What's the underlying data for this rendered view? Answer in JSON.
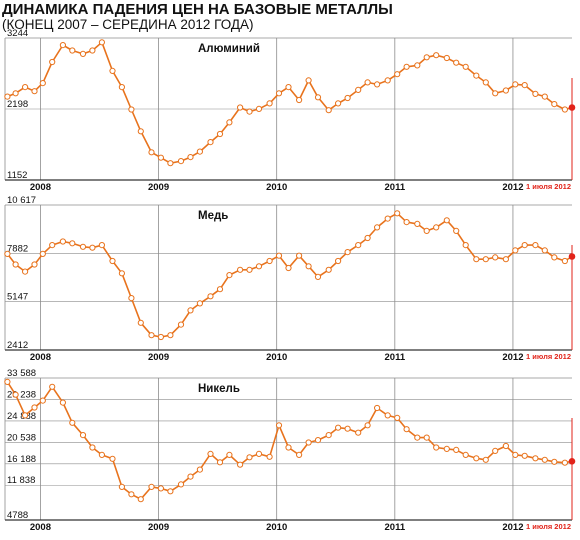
{
  "header": {
    "title": "ДИНАМИКА ПАДЕНИЯ ЦЕН НА БАЗОВЫЕ МЕТАЛЛЫ",
    "subtitle": "(КОНЕЦ 2007 – СЕРЕДИНА 2012 ГОДА)"
  },
  "colors": {
    "line": "#e8731d",
    "marker_fill": "#ffffff",
    "last_point": "#e2231a",
    "date_label": "#e2231a",
    "grid": "#8c8c8c",
    "axis": "#333333"
  },
  "chart_data": [
    {
      "type": "line",
      "title": "Алюминий",
      "x_tick_labels": [
        "2008",
        "2009",
        "2010",
        "2011",
        "2012"
      ],
      "x_ticks": [
        2008,
        2009,
        2010,
        2011,
        2012
      ],
      "end_label": "1 июля 2012",
      "xlim": [
        2007.7,
        2012.5
      ],
      "ylim": [
        1152,
        3244
      ],
      "y_ticks": [
        "3244",
        "2198",
        "1152"
      ],
      "y_tick_values": [
        3244,
        2198,
        1152
      ],
      "x": [
        2007.72,
        2007.79,
        2007.87,
        2007.95,
        2008.02,
        2008.1,
        2008.19,
        2008.27,
        2008.36,
        2008.44,
        2008.52,
        2008.61,
        2008.69,
        2008.77,
        2008.85,
        2008.94,
        2009.02,
        2009.1,
        2009.19,
        2009.27,
        2009.35,
        2009.44,
        2009.52,
        2009.6,
        2009.69,
        2009.77,
        2009.85,
        2009.94,
        2010.02,
        2010.1,
        2010.19,
        2010.27,
        2010.35,
        2010.44,
        2010.52,
        2010.6,
        2010.69,
        2010.77,
        2010.85,
        2010.94,
        2011.02,
        2011.1,
        2011.19,
        2011.27,
        2011.35,
        2011.44,
        2011.52,
        2011.6,
        2011.69,
        2011.77,
        2011.85,
        2011.94,
        2012.02,
        2012.1,
        2012.19,
        2012.27,
        2012.35,
        2012.44,
        2012.5
      ],
      "values": [
        2380,
        2430,
        2520,
        2460,
        2580,
        2890,
        3140,
        3060,
        3010,
        3060,
        3180,
        2760,
        2520,
        2190,
        1870,
        1560,
        1480,
        1400,
        1430,
        1490,
        1570,
        1710,
        1830,
        2000,
        2220,
        2160,
        2200,
        2280,
        2430,
        2520,
        2330,
        2620,
        2370,
        2180,
        2280,
        2360,
        2480,
        2590,
        2560,
        2620,
        2710,
        2820,
        2840,
        2960,
        2990,
        2950,
        2880,
        2820,
        2690,
        2590,
        2430,
        2470,
        2560,
        2550,
        2420,
        2380,
        2270,
        2190,
        2220
      ]
    },
    {
      "type": "line",
      "title": "Медь",
      "x_tick_labels": [
        "2008",
        "2009",
        "2010",
        "2011",
        "2012"
      ],
      "x_ticks": [
        2008,
        2009,
        2010,
        2011,
        2012
      ],
      "end_label": "1 июля 2012",
      "xlim": [
        2007.7,
        2012.5
      ],
      "ylim": [
        2412,
        10617
      ],
      "y_ticks": [
        "10 617",
        "7882",
        "5147",
        "2412"
      ],
      "y_tick_values": [
        10617,
        7882,
        5147,
        2412
      ],
      "x": [
        2007.72,
        2007.79,
        2007.87,
        2007.95,
        2008.02,
        2008.1,
        2008.19,
        2008.27,
        2008.36,
        2008.44,
        2008.52,
        2008.61,
        2008.69,
        2008.77,
        2008.85,
        2008.94,
        2009.02,
        2009.1,
        2009.19,
        2009.27,
        2009.35,
        2009.44,
        2009.52,
        2009.6,
        2009.69,
        2009.77,
        2009.85,
        2009.94,
        2010.02,
        2010.1,
        2010.19,
        2010.27,
        2010.35,
        2010.44,
        2010.52,
        2010.6,
        2010.69,
        2010.77,
        2010.85,
        2010.94,
        2011.02,
        2011.1,
        2011.19,
        2011.27,
        2011.35,
        2011.44,
        2011.52,
        2011.6,
        2011.69,
        2011.77,
        2011.85,
        2011.94,
        2012.02,
        2012.1,
        2012.19,
        2012.27,
        2012.35,
        2012.44,
        2012.5
      ],
      "values": [
        7850,
        7250,
        6850,
        7250,
        7850,
        8350,
        8550,
        8450,
        8250,
        8200,
        8350,
        7450,
        6750,
        5350,
        3950,
        3250,
        3150,
        3250,
        3850,
        4650,
        5050,
        5450,
        5850,
        6650,
        6950,
        6950,
        7150,
        7450,
        7750,
        7050,
        7750,
        7150,
        6550,
        6950,
        7450,
        7950,
        8350,
        8750,
        9350,
        9850,
        10150,
        9650,
        9550,
        9150,
        9350,
        9750,
        9150,
        8350,
        7550,
        7550,
        7650,
        7550,
        8050,
        8350,
        8350,
        8050,
        7650,
        7450,
        7700
      ]
    },
    {
      "type": "line",
      "title": "Никель",
      "x_tick_labels": [
        "2008",
        "2009",
        "2010",
        "2011",
        "2012"
      ],
      "x_ticks": [
        2008,
        2009,
        2010,
        2011,
        2012
      ],
      "end_label": "1 июля 2012",
      "xlim": [
        2007.7,
        2012.5
      ],
      "ylim": [
        4788,
        33588
      ],
      "y_ticks": [
        "33 588",
        "29 238",
        "24 888",
        "20 538",
        "16 188",
        "11 838",
        "4788"
      ],
      "y_tick_values": [
        33588,
        29238,
        24888,
        20538,
        16188,
        11838,
        4788
      ],
      "x": [
        2007.72,
        2007.79,
        2007.87,
        2007.95,
        2008.02,
        2008.1,
        2008.19,
        2008.27,
        2008.36,
        2008.44,
        2008.52,
        2008.61,
        2008.69,
        2008.77,
        2008.85,
        2008.94,
        2009.02,
        2009.1,
        2009.19,
        2009.27,
        2009.35,
        2009.44,
        2009.52,
        2009.6,
        2009.69,
        2009.77,
        2009.85,
        2009.94,
        2010.02,
        2010.1,
        2010.19,
        2010.27,
        2010.35,
        2010.44,
        2010.52,
        2010.6,
        2010.69,
        2010.77,
        2010.85,
        2010.94,
        2011.02,
        2011.1,
        2011.19,
        2011.27,
        2011.35,
        2011.44,
        2011.52,
        2011.6,
        2011.69,
        2011.77,
        2011.85,
        2011.94,
        2012.02,
        2012.1,
        2012.19,
        2012.27,
        2012.35,
        2012.44,
        2012.5
      ],
      "values": [
        32800,
        30200,
        26000,
        27600,
        29000,
        31800,
        28600,
        24500,
        22000,
        19500,
        18000,
        17200,
        11500,
        10000,
        9000,
        11500,
        11200,
        10600,
        12000,
        13600,
        15000,
        18200,
        16500,
        18000,
        16000,
        17500,
        18200,
        17600,
        24000,
        19500,
        18000,
        20500,
        21000,
        22000,
        23500,
        23300,
        22500,
        24000,
        27500,
        26000,
        25500,
        23200,
        21500,
        21500,
        19500,
        19200,
        19000,
        18000,
        17300,
        17000,
        18800,
        19800,
        18000,
        17800,
        17300,
        17000,
        16600,
        16400,
        16700
      ]
    }
  ]
}
